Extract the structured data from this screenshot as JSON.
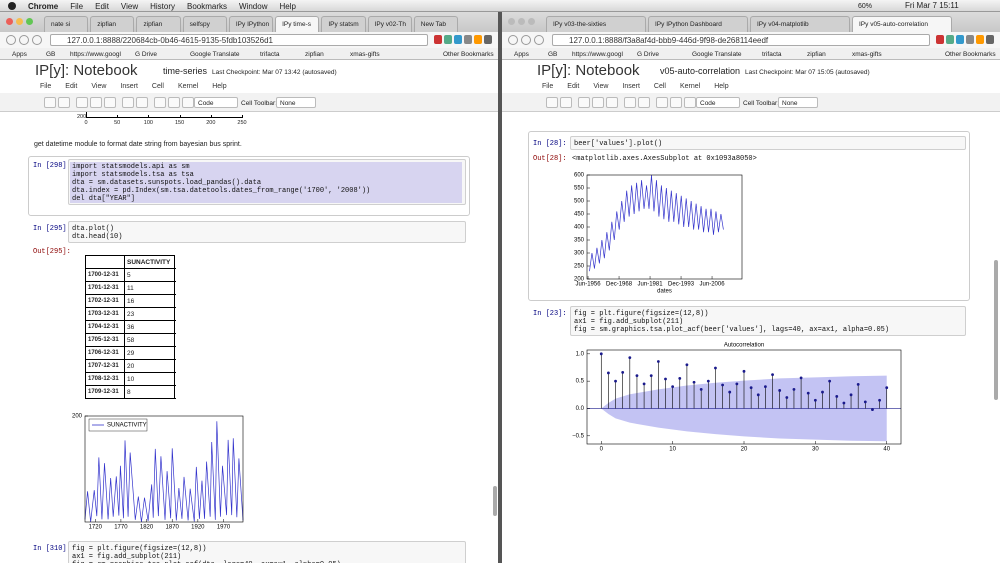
{
  "menubar": {
    "app": "Chrome",
    "items": [
      "File",
      "Edit",
      "View",
      "History",
      "Bookmarks",
      "Window",
      "Help"
    ],
    "battery": "60%",
    "clock": "Fri Mar 7  15:11"
  },
  "left": {
    "tabs": [
      "nate si",
      "zipfian",
      "zipfian",
      "selfspy",
      "IPy IPython",
      "IPy time-s",
      "IPy statsm",
      "IPy v02-Th",
      "New Tab"
    ],
    "url": "127.0.0.1:8888/220684cb-0b46-4615-9135-5fdb103526d1",
    "bookmarks": [
      "Apps",
      "GB",
      "https://www.googl",
      "G Drive",
      "Google Translate",
      "trifacta",
      "zipfian",
      "xmas-gifts",
      "Other Bookmarks"
    ],
    "notebook": {
      "logo": "IP[y]: Notebook",
      "name": "time-series",
      "checkpoint": "Last Checkpoint: Mar 07 13:42 (autosaved)"
    },
    "menu": [
      "File",
      "Edit",
      "View",
      "Insert",
      "Cell",
      "Kernel",
      "Help"
    ],
    "toolbar": {
      "cell_type": "Code",
      "cell_toolbar_label": "Cell Toolbar:",
      "cell_toolbar": "None"
    },
    "partial_chart": {
      "yticks": [
        200
      ],
      "xticks": [
        0,
        50,
        100,
        150,
        200,
        250
      ]
    },
    "markdown": "get datetime module to format date string from bayesian bus sprint.",
    "cells": [
      {
        "prompt": "In [298]:",
        "code": [
          "import statsmodels.api as sm",
          "import statsmodels.tsa as tsa",
          "dta = sm.datasets.sunspots.load_pandas().data",
          "dta.index = pd.Index(sm.tsa.datetools.dates_from_range('1700', '2008'))",
          "del dta[\"YEAR\"]"
        ]
      },
      {
        "prompt": "In [295]:",
        "code": [
          "dta.plot()",
          "dta.head(10)"
        ],
        "out_prompt": "Out[295]:",
        "table": {
          "columns": [
            "SUNACTIVITY"
          ],
          "index": [
            "1700-12-31",
            "1701-12-31",
            "1702-12-31",
            "1703-12-31",
            "1704-12-31",
            "1705-12-31",
            "1706-12-31",
            "1707-12-31",
            "1708-12-31",
            "1709-12-31"
          ],
          "values": [
            5,
            11,
            16,
            23,
            36,
            58,
            29,
            20,
            10,
            8
          ]
        },
        "chart": {
          "type": "line",
          "xlim": [
            1700,
            2008
          ],
          "ylim": [
            0,
            200
          ],
          "xticks": [
            1720,
            1770,
            1820,
            1870,
            1920,
            1970
          ],
          "yticks": [
            200
          ],
          "legend": "upper left",
          "series": [
            {
              "name": "SUNACTIVITY",
              "color": "#3333cc",
              "x": [
                1700,
                1705,
                1711,
                1718,
                1723,
                1727,
                1733,
                1738,
                1745,
                1750,
                1755,
                1761,
                1766,
                1769,
                1775,
                1778,
                1784,
                1788,
                1798,
                1804,
                1810,
                1816,
                1823,
                1830,
                1833,
                1837,
                1843,
                1848,
                1856,
                1860,
                1867,
                1870,
                1878,
                1883,
                1889,
                1893,
                1901,
                1905,
                1913,
                1917,
                1923,
                1928,
                1933,
                1937,
                1944,
                1947,
                1954,
                1957,
                1964,
                1968,
                1976,
                1979,
                1986,
                1989,
                1996,
                2000,
                2008
              ],
              "values": [
                5,
                58,
                0,
                60,
                11,
                122,
                5,
                111,
                5,
                83,
                10,
                86,
                12,
                106,
                7,
                154,
                10,
                131,
                4,
                48,
                0,
                46,
                2,
                71,
                8,
                138,
                11,
                124,
                4,
                96,
                7,
                139,
                3,
                64,
                6,
                85,
                3,
                63,
                1,
                104,
                6,
                78,
                6,
                114,
                10,
                151,
                4,
                190,
                10,
                106,
                13,
                155,
                13,
                158,
                9,
                120,
                3
              ]
            }
          ]
        }
      },
      {
        "prompt": "In [310]:",
        "code": [
          "fig = plt.figure(figsize=(12,8))",
          "ax1 = fig.add_subplot(211)",
          "fig = sm.graphics.tsa.plot_acf(dta, lags=40, ax=ax1, alpha=0.05)"
        ]
      }
    ]
  },
  "right": {
    "tabs": [
      "IPy v03-the-sixties",
      "IPy IPython Dashboard",
      "IPy v04-matplotlib",
      "IPy v05-auto-correlation"
    ],
    "url": "127.0.0.1:8888/f3a8af4d-bbb9-446d-9f98-de268114eedf",
    "bookmarks": [
      "Apps",
      "GB",
      "https://www.googl",
      "G Drive",
      "Google Translate",
      "trifacta",
      "zipfian",
      "xmas-gifts",
      "Other Bookmarks"
    ],
    "notebook": {
      "logo": "IP[y]: Notebook",
      "name": "v05-auto-correlation",
      "checkpoint": "Last Checkpoint: Mar 07 15:05 (autosaved)"
    },
    "menu": [
      "File",
      "Edit",
      "View",
      "Insert",
      "Cell",
      "Kernel",
      "Help"
    ],
    "toolbar": {
      "cell_type": "Code",
      "cell_toolbar_label": "Cell Toolbar:",
      "cell_toolbar": "None"
    },
    "cells": [
      {
        "prompt": "In [28]:",
        "code": [
          "beer['values'].plot()"
        ],
        "out_prompt": "Out[28]:",
        "output": "<matplotlib.axes.AxesSubplot at 0x1093a8050>",
        "chart": {
          "type": "line",
          "xlim": [
            1956,
            2018.5
          ],
          "ylim": [
            200,
            600
          ],
          "xlabel": "dates",
          "xticks": [
            {
              "value": 1956.42,
              "label": "Jun-1956"
            },
            {
              "value": 1968.92,
              "label": "Dec-1968"
            },
            {
              "value": 1981.42,
              "label": "Jun-1981"
            },
            {
              "value": 1993.92,
              "label": "Dec-1993"
            },
            {
              "value": 2006.42,
              "label": "Jun-2006"
            }
          ],
          "yticks": [
            200,
            250,
            300,
            350,
            400,
            450,
            500,
            550,
            600
          ],
          "series": [
            {
              "color": "#3333cc",
              "x": [
                1957,
                1958,
                1959,
                1960,
                1961,
                1962,
                1963,
                1964,
                1965,
                1966,
                1967,
                1968,
                1969,
                1970,
                1971,
                1972,
                1973,
                1974,
                1975,
                1976,
                1977,
                1978,
                1979,
                1980,
                1981,
                1982,
                1983,
                1984,
                1985,
                1986,
                1987,
                1988,
                1989,
                1990,
                1991,
                1992,
                1993,
                1994,
                1995,
                1996,
                1997,
                1998,
                1999,
                2000,
                2001,
                2002,
                2003,
                2004,
                2005,
                2006,
                2007,
                2008,
                2009,
                2010,
                2011
              ],
              "values": [
                230,
                300,
                240,
                320,
                260,
                350,
                280,
                380,
                310,
                420,
                350,
                460,
                390,
                500,
                420,
                540,
                440,
                560,
                450,
                570,
                460,
                580,
                470,
                560,
                470,
                600,
                460,
                580,
                440,
                560,
                430,
                550,
                420,
                540,
                420,
                530,
                410,
                520,
                400,
                510,
                400,
                500,
                390,
                490,
                390,
                480,
                380,
                470,
                380,
                470,
                370,
                460,
                380,
                450,
                390
              ]
            }
          ]
        }
      },
      {
        "prompt": "In [23]:",
        "code": [
          "fig = plt.figure(figsize=(12,8))",
          "ax1 = fig.add_subplot(211)",
          "fig = sm.graphics.tsa.plot_acf(beer['values'], lags=40, ax=ax1, alpha=0.05)"
        ],
        "chart": {
          "type": "stem",
          "title": "Autocorrelation",
          "xlim": [
            -2,
            42
          ],
          "ylim": [
            -0.65,
            1.07
          ],
          "xticks": [
            0,
            10,
            20,
            30,
            40
          ],
          "yticks": [
            {
              "value": -0.5,
              "label": "−0.5"
            },
            {
              "value": 0,
              "label": "0.0"
            },
            {
              "value": 0.5,
              "label": "0.5"
            },
            {
              "value": 1,
              "label": "1.0"
            }
          ],
          "band": {
            "color": "#b4b4f0",
            "x": [
              0,
              1,
              2,
              4,
              8,
              12,
              16,
              20,
              25,
              30,
              35,
              40
            ],
            "upper": [
              0,
              0.1,
              0.18,
              0.26,
              0.35,
              0.42,
              0.47,
              0.51,
              0.55,
              0.57,
              0.59,
              0.6
            ],
            "lower": [
              0,
              -0.1,
              -0.18,
              -0.26,
              -0.35,
              -0.42,
              -0.47,
              -0.51,
              -0.55,
              -0.57,
              -0.59,
              -0.6
            ]
          },
          "series": [
            {
              "color": "#1a1a8c",
              "x": [
                0,
                1,
                2,
                3,
                4,
                5,
                6,
                7,
                8,
                9,
                10,
                11,
                12,
                13,
                14,
                15,
                16,
                17,
                18,
                19,
                20,
                21,
                22,
                23,
                24,
                25,
                26,
                27,
                28,
                29,
                30,
                31,
                32,
                33,
                34,
                35,
                36,
                37,
                38,
                39,
                40
              ],
              "values": [
                1.0,
                0.65,
                0.5,
                0.66,
                0.93,
                0.6,
                0.45,
                0.6,
                0.86,
                0.54,
                0.4,
                0.55,
                0.8,
                0.48,
                0.35,
                0.5,
                0.74,
                0.43,
                0.3,
                0.45,
                0.68,
                0.38,
                0.25,
                0.4,
                0.62,
                0.33,
                0.2,
                0.35,
                0.56,
                0.28,
                0.15,
                0.3,
                0.5,
                0.22,
                0.1,
                0.25,
                0.44,
                0.12,
                -0.02,
                0.15,
                0.38
              ]
            }
          ]
        }
      }
    ]
  }
}
